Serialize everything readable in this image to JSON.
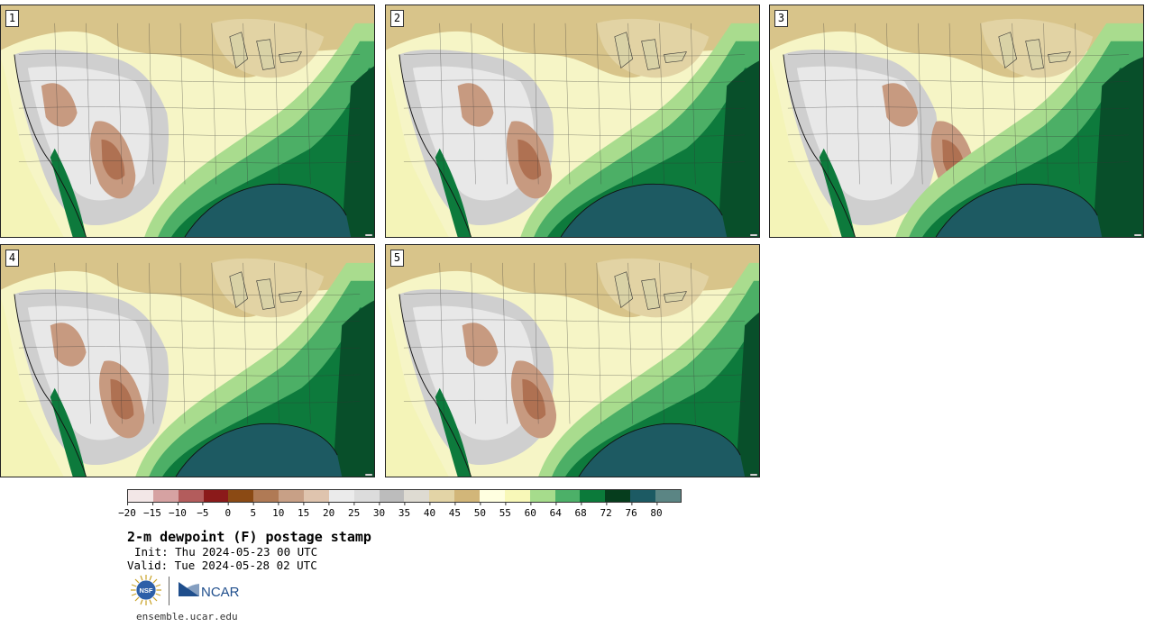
{
  "panels": [
    {
      "label": "1"
    },
    {
      "label": "2"
    },
    {
      "label": "3"
    },
    {
      "label": "4"
    },
    {
      "label": "5"
    }
  ],
  "colorbar": {
    "colors": [
      "#f3e7e7",
      "#d6a2a2",
      "#b35c5c",
      "#8b1a1a",
      "#8b4a14",
      "#b07a55",
      "#c8a086",
      "#dfc4ae",
      "#ebebeb",
      "#dcdcdc",
      "#bcbcbc",
      "#dedbd2",
      "#e3d4a6",
      "#d2b679",
      "#ffffe0",
      "#f8f8b8",
      "#a6dc8c",
      "#4cb068",
      "#0b7a3a",
      "#063d1d",
      "#1c5a63",
      "#5b8584"
    ],
    "ticks": [
      "−20",
      "−15",
      "−10",
      "−5",
      "0",
      "5",
      "10",
      "15",
      "20",
      "25",
      "30",
      "35",
      "40",
      "45",
      "50",
      "55",
      "60",
      "64",
      "68",
      "72",
      "76",
      "80"
    ]
  },
  "title": "2-m dewpoint (F) postage stamp",
  "init": "Init: Thu 2024-05-23 00 UTC",
  "valid": "Valid: Tue 2024-05-28 02 UTC",
  "logos": {
    "nsf": "NSF",
    "ncar": "NCAR"
  },
  "website": "ensemble.ucar.edu"
}
